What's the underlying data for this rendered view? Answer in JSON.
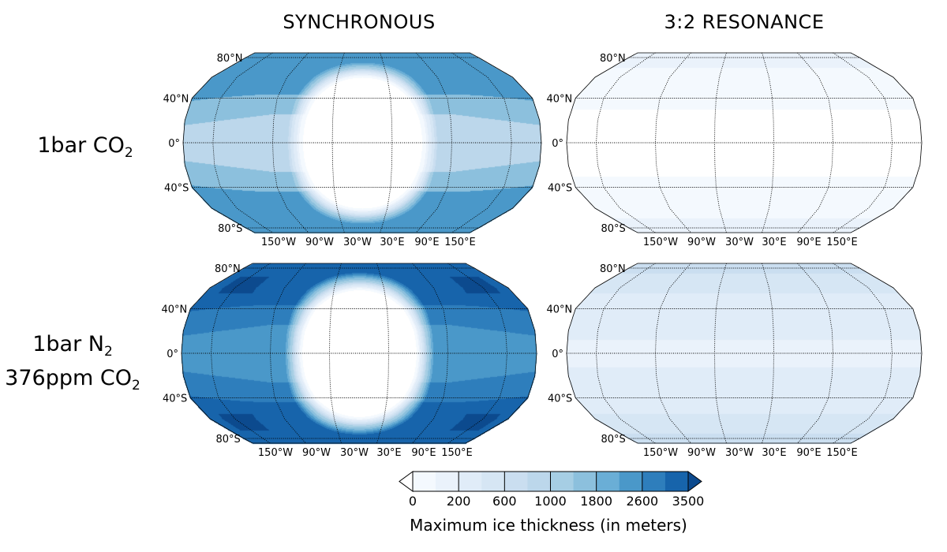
{
  "columns": [
    "SYNCHRONOUS",
    "3:2 RESONANCE"
  ],
  "rows": [
    {
      "lines": [
        {
          "text": "1bar CO",
          "sub": "2"
        }
      ]
    },
    {
      "lines": [
        {
          "text": "1bar N",
          "sub": "2"
        },
        {
          "text": "376ppm CO",
          "sub": "2"
        }
      ]
    }
  ],
  "lat_labels": [
    {
      "lat": 80,
      "label": "80°N"
    },
    {
      "lat": 40,
      "label": "40°N"
    },
    {
      "lat": 0,
      "label": "0°"
    },
    {
      "lat": -40,
      "label": "40°S"
    },
    {
      "lat": -80,
      "label": "80°S"
    }
  ],
  "lon_labels": [
    "150°W",
    "90°W",
    "30°W",
    "30°E",
    "90°E",
    "150°E"
  ],
  "meridians_deg": [
    -150,
    -90,
    -30,
    30,
    90,
    150
  ],
  "colorbar": {
    "label": "Maximum ice thickness (in meters)",
    "levels": [
      0,
      100,
      200,
      400,
      600,
      800,
      1000,
      1400,
      1800,
      2200,
      2600,
      3050,
      3500
    ],
    "tick_labels": [
      "0",
      "200",
      "600",
      "1000",
      "1800",
      "2600",
      "3500"
    ],
    "colors": [
      "#f4f9fe",
      "#eaf2fb",
      "#e0ecf8",
      "#d6e6f4",
      "#cadef0",
      "#bcd7eb",
      "#a6cee4",
      "#8cc0dd",
      "#6aaed6",
      "#4a98c9",
      "#2e7ebc",
      "#1764ab"
    ],
    "under_color": "#ffffff",
    "over_color": "#0c4a8e"
  },
  "chart_data": {
    "type": "heatmap",
    "title": "Maximum ice thickness (in meters)",
    "projection": "Robinson-like global map",
    "units": "m",
    "panels": [
      {
        "row": "1bar CO2",
        "column": "SYNCHRONOUS",
        "kind": "synchronous",
        "ice_free_radius_deg": 60,
        "transition_width_deg": 16,
        "nightside_equator": 900,
        "nightside_midlat": 1600,
        "nightside_highlat": 2400,
        "spots": null
      },
      {
        "row": "1bar CO2",
        "column": "3:2 RESONANCE",
        "kind": "zonal",
        "bands": [
          {
            "max_lat": 30,
            "value": -1
          },
          {
            "max_lat": 45,
            "value": 50
          },
          {
            "max_lat": 70,
            "value": 50
          },
          {
            "max_lat": 90,
            "value": 150
          }
        ]
      },
      {
        "row": "1bar N2 376ppm CO2",
        "column": "SYNCHRONOUS",
        "kind": "synchronous",
        "ice_free_radius_deg": 58,
        "transition_width_deg": 18,
        "nightside_equator": 2400,
        "nightside_midlat": 2800,
        "nightside_highlat": 3200,
        "spots": 3600
      },
      {
        "row": "1bar N2 376ppm CO2",
        "column": "3:2 RESONANCE",
        "kind": "zonal",
        "bands": [
          {
            "max_lat": 12,
            "value": 150
          },
          {
            "max_lat": 30,
            "value": 300
          },
          {
            "max_lat": 55,
            "value": 300
          },
          {
            "max_lat": 75,
            "value": 500
          },
          {
            "max_lat": 90,
            "value": 700
          }
        ]
      }
    ]
  }
}
